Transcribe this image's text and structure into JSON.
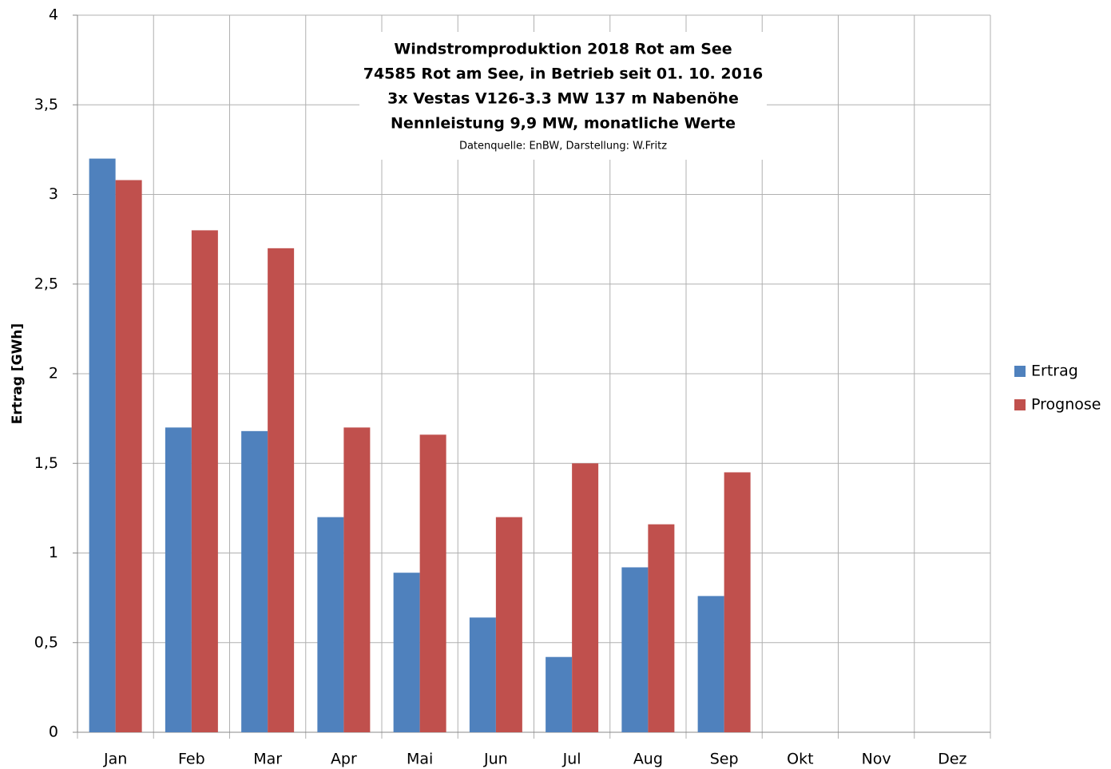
{
  "chart_data": {
    "type": "bar",
    "title_lines": [
      "Windstromproduktion  2018 Rot am See",
      "74585 Rot am See, in Betrieb seit 01. 10. 2016",
      "3x Vestas V126-3.3 MW 137 m Nabenöhe",
      "Nennleistung 9,9 MW, monatliche Werte"
    ],
    "source": "Datenquelle: EnBW, Darstellung: W.Fritz",
    "y_label": "Ertrag [GWh]",
    "categories": [
      "Jan",
      "Feb",
      "Mar",
      "Apr",
      "Mai",
      "Jun",
      "Jul",
      "Aug",
      "Sep",
      "Okt",
      "Nov",
      "Dez"
    ],
    "series": [
      {
        "name": "Ertrag",
        "color": "#4f81bd",
        "values": [
          3.2,
          1.7,
          1.68,
          1.2,
          0.89,
          0.64,
          0.42,
          0.92,
          0.76,
          null,
          null,
          null
        ]
      },
      {
        "name": "Prognose",
        "color": "#c0504d",
        "values": [
          3.08,
          2.8,
          2.7,
          1.7,
          1.66,
          1.2,
          1.5,
          1.16,
          1.45,
          null,
          null,
          null
        ]
      }
    ],
    "ylim": [
      0,
      4
    ],
    "yticks": [
      0,
      {
        "value": 0.5,
        "label": "0,5"
      },
      1,
      {
        "value": 1.5,
        "label": "1,5"
      },
      2,
      {
        "value": 2.5,
        "label": "2,5"
      },
      3,
      {
        "value": 3.5,
        "label": "3,5"
      },
      4
    ],
    "grid": true,
    "legend": "right"
  }
}
